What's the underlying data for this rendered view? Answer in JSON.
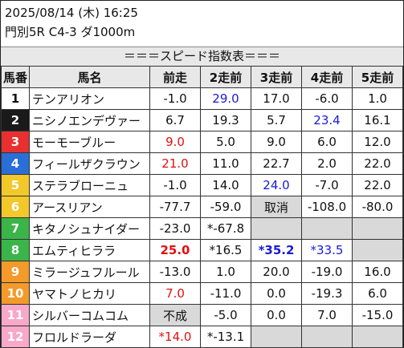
{
  "header": {
    "datetime": "2025/08/14 (木) 16:25",
    "race": "門別5R C4-3 ダ1000m"
  },
  "banner": "＝＝＝スピード指数表＝＝＝",
  "columns": [
    "馬番",
    "馬名",
    "前走",
    "2走前",
    "3走前",
    "4走前",
    "5走前"
  ],
  "colors": {
    "frame1": "#ffffff",
    "frame2": "#1a1a1a",
    "frame3": "#e83030",
    "frame4": "#2a6ed8",
    "frame5": "#f2c82a",
    "frame6": "#3bb54a",
    "frame7": "#f39a2a",
    "frame8": "#f8a8c8",
    "red_text": "#e01010",
    "blue_text": "#1a1ad8",
    "gray_cell": "#d9d9d9",
    "header_bg": "#e8e8e8"
  },
  "rows": [
    {
      "no": "1",
      "name": "テンアリオン",
      "c1": "-1.0",
      "c2": "29.0",
      "c3": "17.0",
      "c4": "-6.0",
      "c5": "1.0"
    },
    {
      "no": "2",
      "name": "ニシノエンデヴァー",
      "c1": "6.7",
      "c2": "19.3",
      "c3": "5.7",
      "c4": "23.4",
      "c5": "16.1"
    },
    {
      "no": "3",
      "name": "モーモーブルー",
      "c1": "9.0",
      "c2": "5.0",
      "c3": "9.0",
      "c4": "6.0",
      "c5": "12.0"
    },
    {
      "no": "4",
      "name": "フィールザクラウン",
      "c1": "21.0",
      "c2": "11.0",
      "c3": "22.7",
      "c4": "2.0",
      "c5": "22.0"
    },
    {
      "no": "5",
      "name": "ステラブローニュ",
      "c1": "-1.0",
      "c2": "14.0",
      "c3": "24.0",
      "c4": "-7.0",
      "c5": "22.0"
    },
    {
      "no": "6",
      "name": "アースリアン",
      "c1": "-77.7",
      "c2": "-59.0",
      "c3": "取消",
      "c4": "-108.0",
      "c5": "-80.0"
    },
    {
      "no": "7",
      "name": "キタノシュナイダー",
      "c1": "-23.0",
      "c2": "*-67.8",
      "c3": "",
      "c4": "",
      "c5": ""
    },
    {
      "no": "8",
      "name": "エムティヒララ",
      "c1": "25.0",
      "c2": "*16.5",
      "c3": "*35.2",
      "c4": "*33.5",
      "c5": ""
    },
    {
      "no": "9",
      "name": "ミラージュフルール",
      "c1": "-13.0",
      "c2": "1.0",
      "c3": "20.0",
      "c4": "-19.0",
      "c5": "16.0"
    },
    {
      "no": "10",
      "name": "ヤマトノヒカリ",
      "c1": "7.0",
      "c2": "-11.0",
      "c3": "0.0",
      "c4": "-19.3",
      "c5": "6.0"
    },
    {
      "no": "11",
      "name": "シルバーコムコム",
      "c1": "不成",
      "c2": "-5.0",
      "c3": "0.0",
      "c4": "7.0",
      "c5": "-15.0"
    },
    {
      "no": "12",
      "name": "フロルドラーダ",
      "c1": "*14.0",
      "c2": "*-13.1",
      "c3": "",
      "c4": "",
      "c5": ""
    }
  ]
}
